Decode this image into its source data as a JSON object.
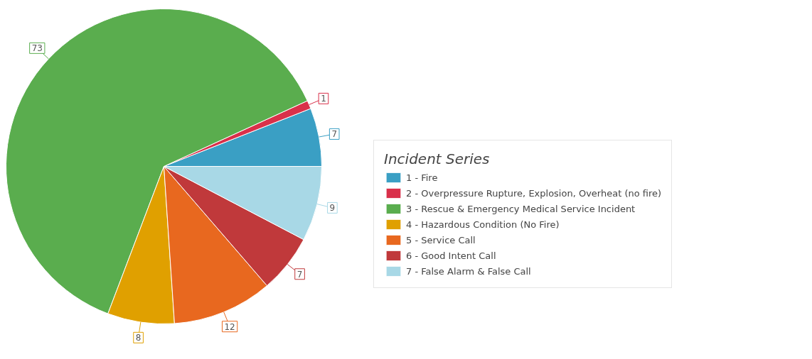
{
  "chart_data": {
    "type": "pie",
    "legend_title": "Incident Series",
    "legend": "right",
    "data_labels": true,
    "categories": [
      "1 - Fire",
      "2 - Overpressure Rupture, Explosion, Overheat (no fire)",
      "3 - Rescue & Emergency Medical Service Incident",
      "4 - Hazardous Condition (No Fire)",
      "5 - Service Call",
      "6 - Good Intent Call",
      "7 - False Alarm & False Call"
    ],
    "values": [
      7,
      1,
      73,
      8,
      12,
      7,
      9
    ],
    "colors": [
      "#3a9fc4",
      "#d9304a",
      "#5aad4e",
      "#e0a000",
      "#e8681f",
      "#c0393b",
      "#a8d8e6"
    ]
  }
}
